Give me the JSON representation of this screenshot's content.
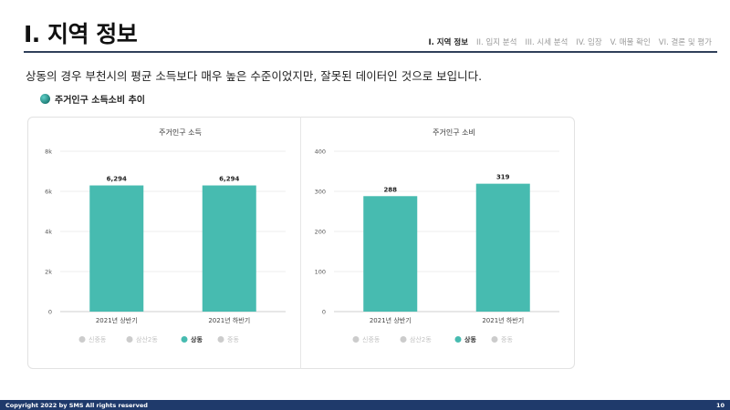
{
  "header": {
    "title": "I. 지역 정보",
    "nav": [
      {
        "label": "I. 지역 정보",
        "active": true
      },
      {
        "label": "II. 입지 분석",
        "active": false
      },
      {
        "label": "III. 시세 분석",
        "active": false
      },
      {
        "label": "IV. 임장",
        "active": false
      },
      {
        "label": "V. 매물 확인",
        "active": false
      },
      {
        "label": "VI. 결론 및 평가",
        "active": false
      }
    ]
  },
  "subtitle": "상동의 경우 부천시의 평균 소득보다 매우 높은 수준이었지만, 잘못된 데이터인 것으로 보입니다.",
  "section_label": "주거인구 소득소비 추이",
  "colors": {
    "bar": "#47bbb0",
    "legend_inactive": "#cccccc",
    "footer_bg": "#1f3a6b",
    "rule": "#2f3f5a"
  },
  "chart_data": [
    {
      "type": "bar",
      "title": "주거인구 소득",
      "categories": [
        "2021년 상반기",
        "2021년 하반기"
      ],
      "values": [
        6294,
        6294
      ],
      "value_labels": [
        "6,294",
        "6,294"
      ],
      "ylim": [
        0,
        8000
      ],
      "yticks": [
        0,
        2000,
        4000,
        6000,
        8000
      ],
      "ytick_labels": [
        "0",
        "2k",
        "4k",
        "6k",
        "8k"
      ],
      "grid": true,
      "legend": [
        {
          "label": "신중동",
          "active": false
        },
        {
          "label": "삼산2동",
          "active": false
        },
        {
          "label": "상동",
          "active": true
        },
        {
          "label": "중동",
          "active": false
        }
      ]
    },
    {
      "type": "bar",
      "title": "주거인구 소비",
      "categories": [
        "2021년 상반기",
        "2021년 하반기"
      ],
      "values": [
        288,
        319
      ],
      "value_labels": [
        "288",
        "319"
      ],
      "ylim": [
        0,
        400
      ],
      "yticks": [
        0,
        100,
        200,
        300,
        400
      ],
      "ytick_labels": [
        "0",
        "100",
        "200",
        "300",
        "400"
      ],
      "grid": true,
      "legend": [
        {
          "label": "신중동",
          "active": false
        },
        {
          "label": "삼산2동",
          "active": false
        },
        {
          "label": "상동",
          "active": true
        },
        {
          "label": "중동",
          "active": false
        }
      ]
    }
  ],
  "footer": {
    "copyright": "Copyright 2022 by SMS All rights reserved",
    "page": "10"
  }
}
